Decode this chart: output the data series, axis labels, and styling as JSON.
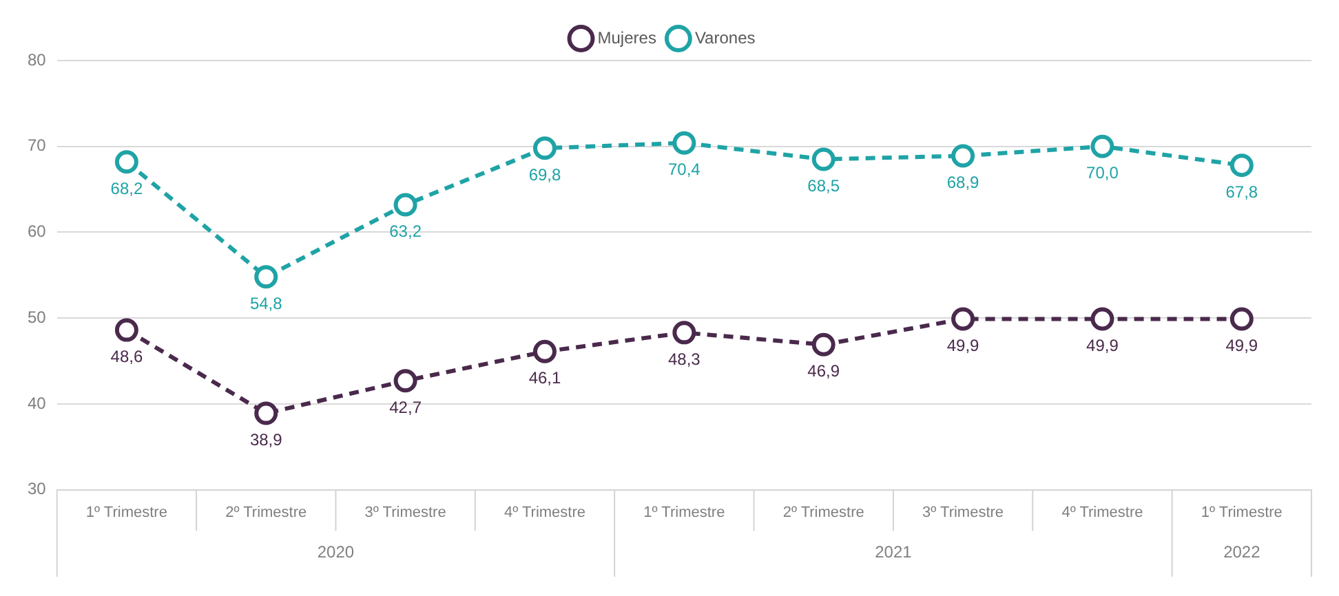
{
  "chart_data": {
    "type": "line",
    "categories": [
      "1º Trimestre",
      "2º Trimestre",
      "3º Trimestre",
      "4º Trimestre",
      "1º Trimestre",
      "2º Trimestre",
      "3º Trimestre",
      "4º Trimestre",
      "1º Trimestre"
    ],
    "series": [
      {
        "name": "Mujeres",
        "color": "#4a2a4c",
        "values": [
          48.6,
          38.9,
          42.7,
          46.1,
          48.3,
          46.9,
          49.9,
          49.9,
          49.9
        ],
        "value_labels": [
          "48,6",
          "38,9",
          "42,7",
          "46,1",
          "48,3",
          "46,9",
          "49,9",
          "49,9",
          "49,9"
        ]
      },
      {
        "name": "Varones",
        "color": "#1fa3a6",
        "values": [
          68.2,
          54.8,
          63.2,
          69.8,
          70.4,
          68.5,
          68.9,
          70.0,
          67.8
        ],
        "value_labels": [
          "68,2",
          "54,8",
          "63,2",
          "69,8",
          "70,4",
          "68,5",
          "68,9",
          "70,0",
          "67,8"
        ]
      }
    ],
    "ylim": [
      30,
      80
    ],
    "yticks": [
      30,
      40,
      50,
      60,
      70,
      80
    ],
    "grid": "y",
    "legend": "top",
    "marker": "circle",
    "line_style": "dashed",
    "annotations": [
      "2020",
      "2021",
      "2022"
    ]
  }
}
